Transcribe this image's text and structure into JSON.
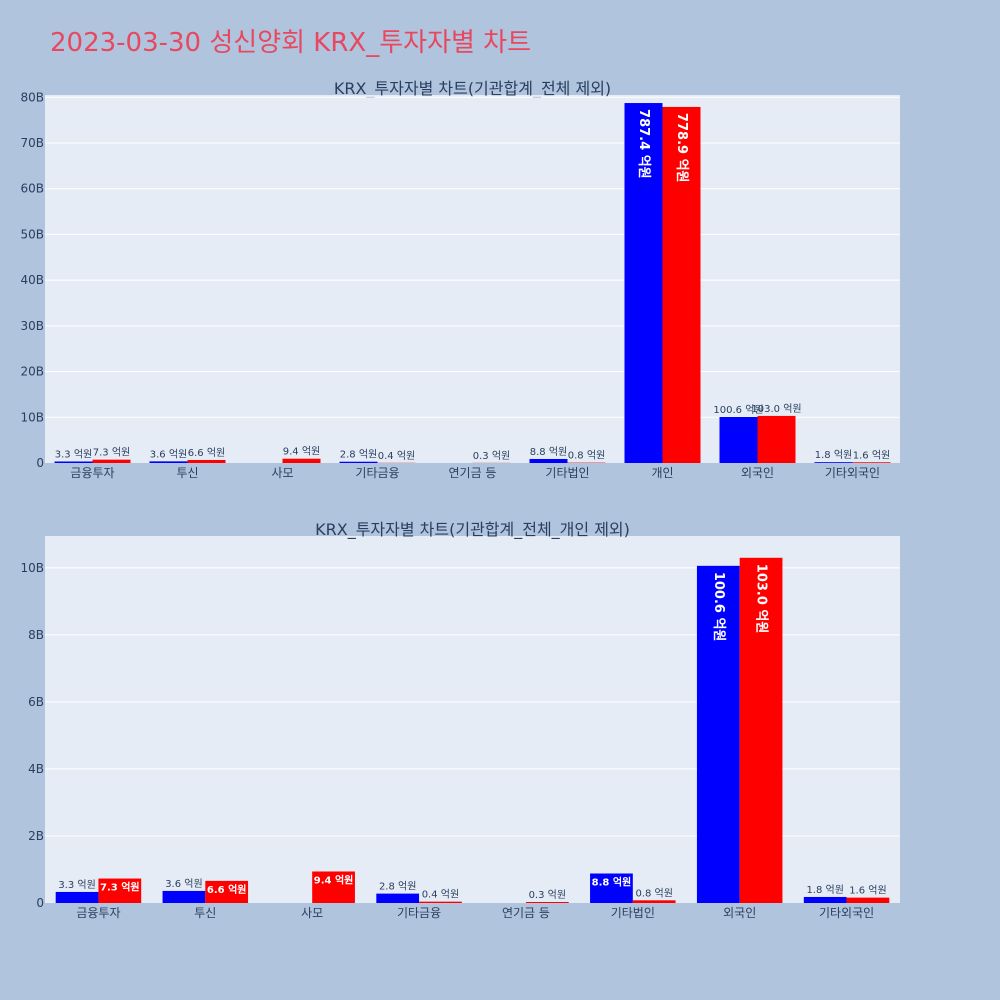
{
  "page_title": "2023-03-30 성신양회 KRX_투자자별 차트",
  "colors": {
    "background": "#b0c4de",
    "plot_bg": "#e5ecf6",
    "buy": "#0000ff",
    "sell": "#ff0000",
    "title": "#e8485f"
  },
  "chart_data": [
    {
      "type": "bar",
      "title": "KRX_투자자별 차트(기관합계_전체 제외)",
      "categories": [
        "금융투자",
        "투신",
        "사모",
        "기타금융",
        "연기금 등",
        "기타법인",
        "개인",
        "외국인",
        "기타외국인"
      ],
      "series": [
        {
          "color": "#0000ff",
          "values": [
            0.33,
            0.36,
            0,
            0.28,
            0,
            0.88,
            78.74,
            10.06,
            0.18
          ],
          "labels": [
            "3.3 억원",
            "3.6 억원",
            "",
            "2.8 억원",
            "",
            "8.8 억원",
            "787.4 억원",
            "100.6 억원",
            "1.8 억원"
          ]
        },
        {
          "color": "#ff0000",
          "values": [
            0.73,
            0.66,
            0.94,
            0.04,
            0.03,
            0.08,
            77.89,
            10.3,
            0.16
          ],
          "labels": [
            "7.3 억원",
            "6.6 억원",
            "9.4 억원",
            "0.4 억원",
            "0.3 억원",
            "0.8 억원",
            "778.9 억원",
            "103.0 억원",
            "1.6 억원"
          ]
        }
      ],
      "ylim": [
        0,
        80.5
      ],
      "yticks": [
        0,
        10,
        20,
        30,
        40,
        50,
        60,
        70,
        80
      ],
      "ytick_labels": [
        "0",
        "10B",
        "20B",
        "30B",
        "40B",
        "50B",
        "60B",
        "70B",
        "80B"
      ],
      "grid": true
    },
    {
      "type": "bar",
      "title": "KRX_투자자별 차트(기관합계_전체_개인 제외)",
      "categories": [
        "금융투자",
        "투신",
        "사모",
        "기타금융",
        "연기금 등",
        "기타법인",
        "외국인",
        "기타외국인"
      ],
      "series": [
        {
          "color": "#0000ff",
          "values": [
            0.33,
            0.36,
            0,
            0.28,
            0,
            0.88,
            10.06,
            0.18
          ],
          "labels": [
            "3.3 억원",
            "3.6 억원",
            "",
            "2.8 억원",
            "",
            "8.8 억원",
            "100.6 억원",
            "1.8 억원"
          ]
        },
        {
          "color": "#ff0000",
          "values": [
            0.73,
            0.66,
            0.94,
            0.04,
            0.03,
            0.08,
            10.3,
            0.16
          ],
          "labels": [
            "7.3 억원",
            "6.6 억원",
            "9.4 억원",
            "0.4 억원",
            "0.3 억원",
            "0.8 억원",
            "103.0 억원",
            "1.6 억원"
          ]
        }
      ],
      "ylim": [
        0,
        10.95
      ],
      "yticks": [
        0,
        2,
        4,
        6,
        8,
        10
      ],
      "ytick_labels": [
        "0",
        "2B",
        "4B",
        "6B",
        "8B",
        "10B"
      ],
      "grid": true
    }
  ]
}
